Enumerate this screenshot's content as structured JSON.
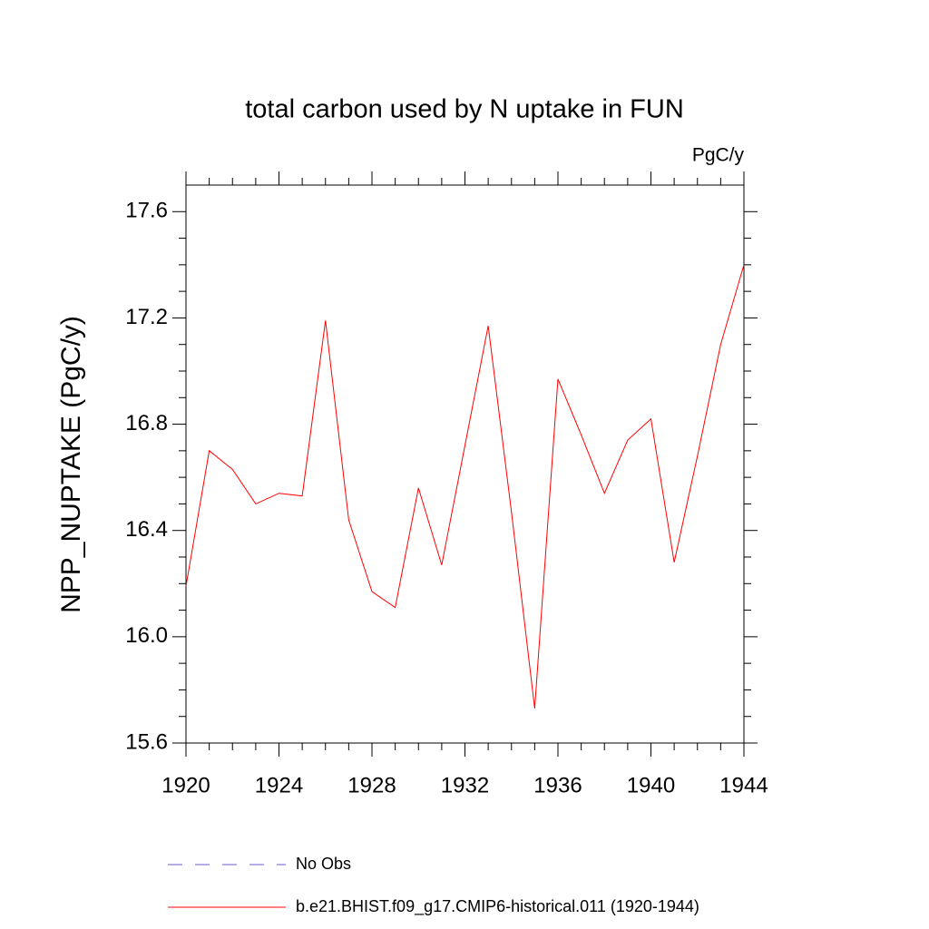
{
  "chart_data": {
    "type": "line",
    "title": "total carbon used by N uptake in FUN",
    "units": "PgC/y",
    "y_label": "NPP_NUPTAKE  (PgC/y)",
    "x": [
      1920,
      1921,
      1922,
      1923,
      1924,
      1925,
      1926,
      1927,
      1928,
      1929,
      1930,
      1931,
      1932,
      1933,
      1934,
      1935,
      1936,
      1937,
      1938,
      1939,
      1940,
      1941,
      1942,
      1943,
      1944
    ],
    "series": [
      {
        "name": "b.e21.BHIST.f09_g17.CMIP6-historical.011 (1920-1944)",
        "color": "#ff0000",
        "values": [
          16.19,
          16.7,
          16.63,
          16.5,
          16.54,
          16.53,
          17.19,
          16.44,
          16.17,
          16.11,
          16.56,
          16.27,
          16.72,
          17.17,
          16.47,
          15.73,
          16.97,
          16.76,
          16.54,
          16.74,
          16.82,
          16.28,
          16.68,
          17.1,
          17.4
        ]
      }
    ],
    "reference": {
      "name": "No Obs",
      "color": "#6a5acd"
    },
    "xlim": [
      1920,
      1944
    ],
    "xticks": [
      1920,
      1924,
      1928,
      1932,
      1936,
      1940,
      1944
    ],
    "ylim": [
      15.6,
      17.7
    ],
    "yticks": [
      15.6,
      {
        "value": 16,
        "label": "16.0"
      },
      16.4,
      16.8,
      17.2,
      17.6
    ]
  }
}
